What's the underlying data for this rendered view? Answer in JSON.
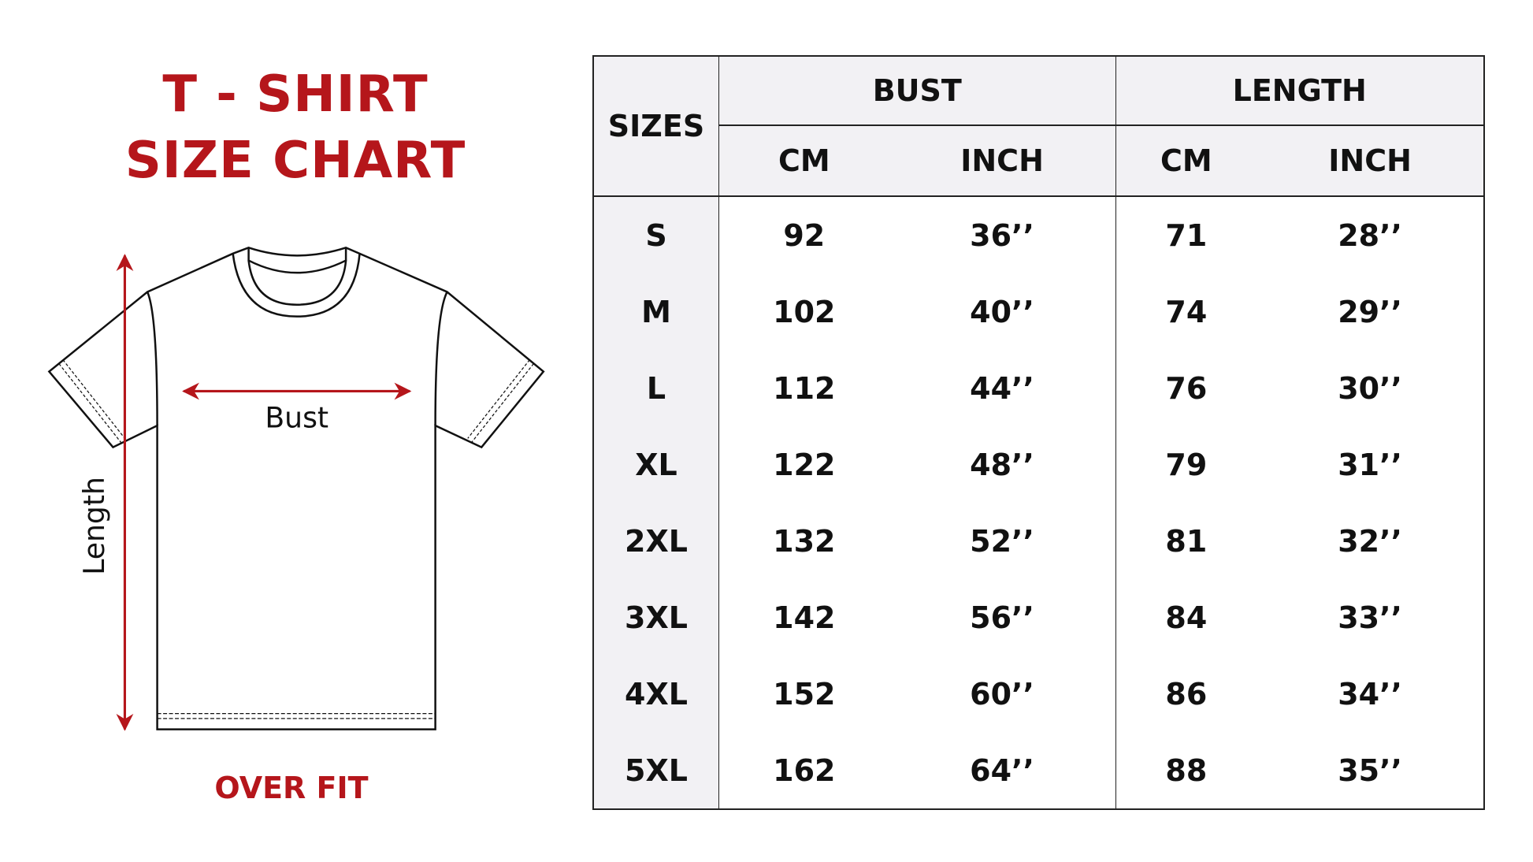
{
  "title": {
    "line1": "T - SHIRT",
    "line2": "SIZE CHART"
  },
  "fit_label": "OVER FIT",
  "diagram": {
    "bust_label": "Bust",
    "length_label": "Length"
  },
  "colors": {
    "accent": "#b5161b",
    "header_bg": "#f2f1f4",
    "line": "#222222"
  },
  "table": {
    "sizes_header": "SIZES",
    "groups": [
      "BUST",
      "LENGTH"
    ],
    "subheaders": [
      "CM",
      "INCH",
      "CM",
      "INCH"
    ],
    "rows": [
      {
        "size": "S",
        "bust_cm": "92",
        "bust_inch": "36’’",
        "length_cm": "71",
        "length_inch": "28’’"
      },
      {
        "size": "M",
        "bust_cm": "102",
        "bust_inch": "40’’",
        "length_cm": "74",
        "length_inch": "29’’"
      },
      {
        "size": "L",
        "bust_cm": "112",
        "bust_inch": "44’’",
        "length_cm": "76",
        "length_inch": "30’’"
      },
      {
        "size": "XL",
        "bust_cm": "122",
        "bust_inch": "48’’",
        "length_cm": "79",
        "length_inch": "31’’"
      },
      {
        "size": "2XL",
        "bust_cm": "132",
        "bust_inch": "52’’",
        "length_cm": "81",
        "length_inch": "32’’"
      },
      {
        "size": "3XL",
        "bust_cm": "142",
        "bust_inch": "56’’",
        "length_cm": "84",
        "length_inch": "33’’"
      },
      {
        "size": "4XL",
        "bust_cm": "152",
        "bust_inch": "60’’",
        "length_cm": "86",
        "length_inch": "34’’"
      },
      {
        "size": "5XL",
        "bust_cm": "162",
        "bust_inch": "64’’",
        "length_cm": "88",
        "length_inch": "35’’"
      }
    ]
  }
}
